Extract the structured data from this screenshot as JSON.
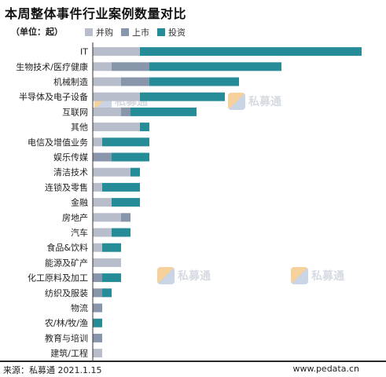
{
  "title": "本周整体事件行业案例数量对比",
  "unit_label": "（单位：起）",
  "footer": {
    "source": "来源：私募通  2021.1.15",
    "site": "www.pedata.cn"
  },
  "watermark_text": "私募通",
  "colors": {
    "merger": "#b8bdcc",
    "ipo": "#8796ab",
    "investment": "#268c98",
    "axis": "#333333"
  },
  "chart_data": {
    "type": "bar",
    "orientation": "horizontal",
    "stacked": true,
    "title": "本周整体事件行业案例数量对比",
    "categories": [
      "IT",
      "生物技术/医疗健康",
      "机械制造",
      "半导体及电子设备",
      "互联网",
      "其他",
      "电信及增值业务",
      "娱乐传媒",
      "清洁技术",
      "连锁及零售",
      "金融",
      "房地产",
      "汽车",
      "食品&饮料",
      "能源及矿产",
      "化工原料及加工",
      "纺织及服装",
      "物流",
      "农/林/牧/渔",
      "教育与培训",
      "建筑/工程"
    ],
    "series": [
      {
        "name": "并购",
        "values": [
          10,
          4,
          6,
          10,
          6,
          10,
          2,
          0,
          8,
          2,
          4,
          6,
          4,
          2,
          6,
          0,
          0,
          0,
          0,
          0,
          2
        ]
      },
      {
        "name": "上市",
        "values": [
          0,
          8,
          6,
          0,
          2,
          0,
          0,
          4,
          0,
          0,
          0,
          2,
          0,
          0,
          0,
          2,
          2,
          2,
          0,
          2,
          0
        ]
      },
      {
        "name": "投资",
        "values": [
          47,
          28,
          19,
          18,
          14,
          2,
          10,
          8,
          2,
          8,
          6,
          0,
          4,
          4,
          0,
          4,
          2,
          0,
          2,
          0,
          0
        ]
      }
    ],
    "xlim": [
      0,
      60
    ],
    "grid": false,
    "legend_position": "top"
  }
}
